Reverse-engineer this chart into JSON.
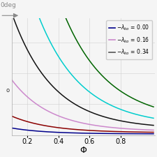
{
  "xlabel": "Φ",
  "annotation_text": "0deg",
  "xlim": [
    0.1,
    1.02
  ],
  "xticks": [
    0.2,
    0.4,
    0.6,
    0.8
  ],
  "background_color": "#f5f5f5",
  "plot_bg": "#f5f5f5",
  "grid_color": "#d0d0d0",
  "curves": [
    {
      "color": "#00008B",
      "amp": 0.3,
      "decay": 4.5,
      "vshift": 0.04
    },
    {
      "color": "#8B0000",
      "amp": 0.8,
      "decay": 4.0,
      "vshift": 0.08
    },
    {
      "color": "#CC88CC",
      "amp": 2.5,
      "decay": 4.0,
      "vshift": 0.12
    },
    {
      "color": "#111111",
      "amp": 5.5,
      "decay": 3.8,
      "vshift": 0.2
    },
    {
      "color": "#00CDCD",
      "amp": 9.5,
      "decay": 3.6,
      "vshift": 0.3
    },
    {
      "color": "#006400",
      "amp": 16.0,
      "decay": 3.5,
      "vshift": 0.45
    }
  ],
  "legend_entries": [
    {
      "label": "$-\\lambda_{ko}$ = 0.00",
      "color": "#00008B"
    },
    {
      "label": "$-\\lambda_{ko}$ = 0.16",
      "color": "#00CDCD"
    },
    {
      "label": "$-\\lambda_{ko}$ = 0.34",
      "color": "#555555"
    }
  ],
  "legend_right_colors": [
    "#8B0000",
    "#00CDCD",
    "#006400"
  ]
}
